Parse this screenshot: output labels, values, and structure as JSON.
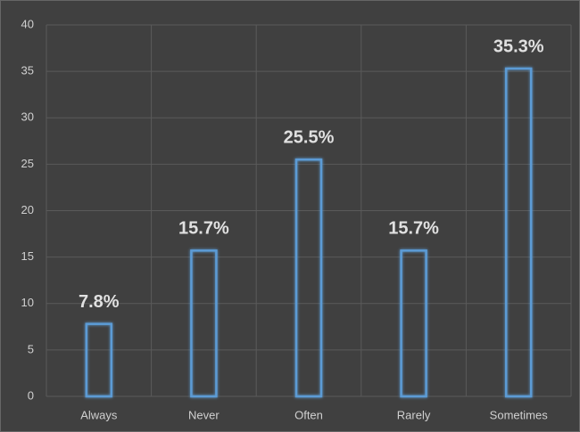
{
  "chart_data": {
    "type": "bar",
    "categories": [
      "Always",
      "Never",
      "Often",
      "Rarely",
      "Sometimes"
    ],
    "values": [
      7.8,
      15.7,
      25.5,
      15.7,
      35.3
    ],
    "value_labels": [
      "7.8%",
      "15.7%",
      "25.5%",
      "15.7%",
      "35.3%"
    ],
    "color": "#5b9bd5",
    "ylim": [
      0,
      40
    ],
    "yticks": [
      0,
      5,
      10,
      15,
      20,
      25,
      30,
      35,
      40
    ],
    "grid": true
  }
}
